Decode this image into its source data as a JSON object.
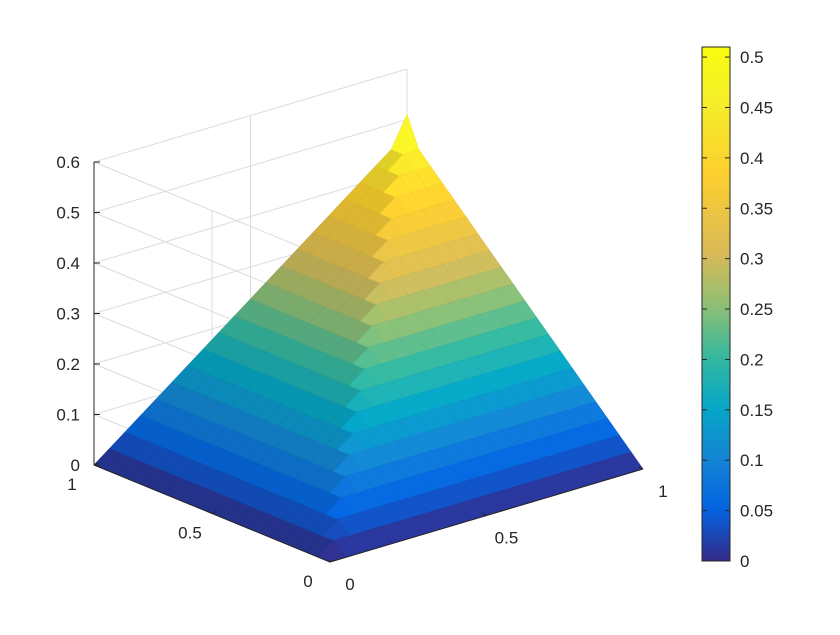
{
  "chart_data": {
    "type": "surface3d",
    "title": "",
    "xlabel": "",
    "ylabel": "",
    "zlabel": "",
    "x_ticks": [
      "0",
      "0.5",
      "1"
    ],
    "y_ticks": [
      "0",
      "0.5",
      "1"
    ],
    "z_ticks": [
      "0",
      "0.1",
      "0.2",
      "0.3",
      "0.4",
      "0.5",
      "0.6"
    ],
    "xlim": [
      0,
      1
    ],
    "ylim": [
      0,
      1
    ],
    "zlim": [
      0,
      0.6
    ],
    "grid": true,
    "surface": {
      "description": "pyramid-like surface, z rising linearly from 0 at the x=0 and y=0 edges to about 0.45 near x=1,y=1, with a spike to 0.51 at the far corner",
      "grid_n": 21,
      "peak_value": 0.51,
      "plateau_value": 0.45
    },
    "colorbar": {
      "colormap": "parula",
      "limits": [
        0,
        0.51
      ],
      "ticks": [
        "0",
        "0.05",
        "0.1",
        "0.15",
        "0.2",
        "0.25",
        "0.3",
        "0.35",
        "0.4",
        "0.45",
        "0.5"
      ],
      "position": "right"
    },
    "colors": {
      "axis": "#262626",
      "grid": "#dcdcdc"
    }
  }
}
